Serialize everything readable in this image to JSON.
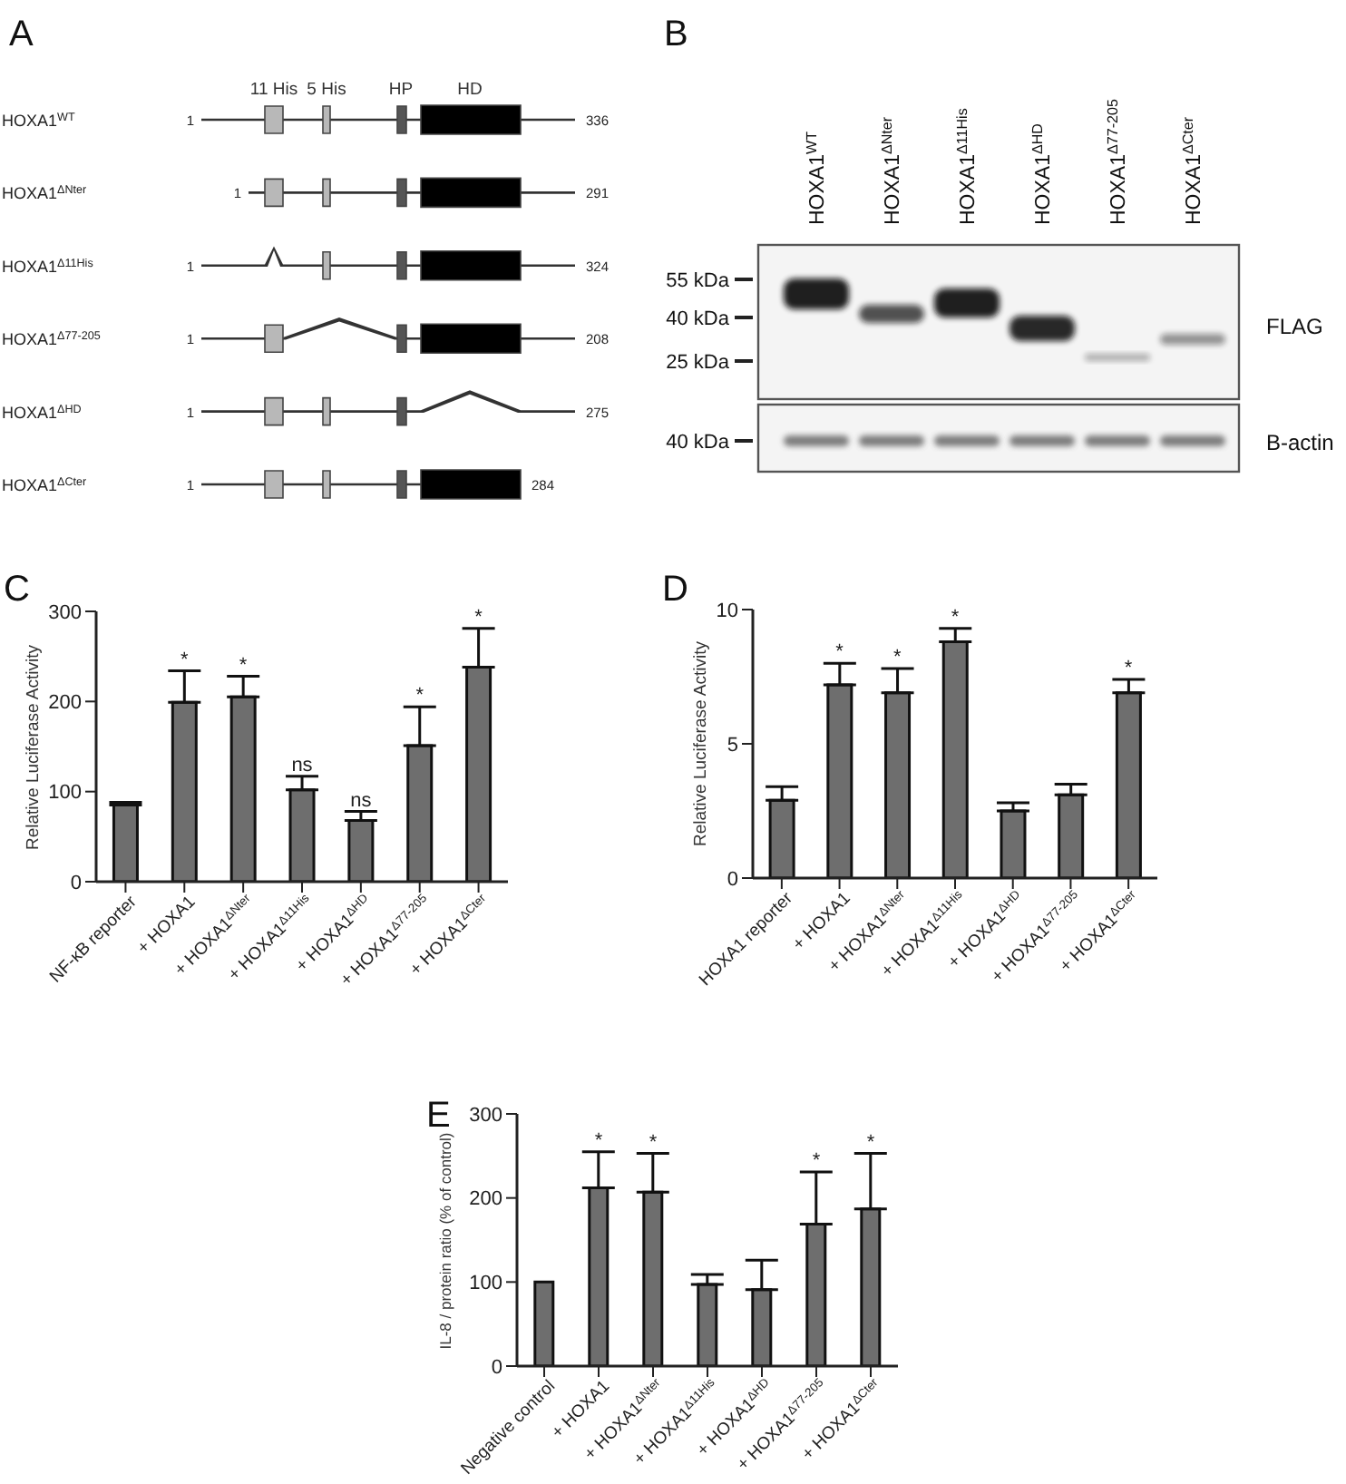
{
  "chart_data": [
    {
      "type": "other",
      "title": "A",
      "categories": [
        "HOXA1$^{WT}$",
        "HOXA1$^{ΔNter}$",
        "HOXA1$^{Δ11His}$",
        "HOXA1$^{Δ77-205}$",
        "HOXA1$^{ΔHD}$",
        "HOXA1$^{ΔCter}$"
      ],
      "values": [
        336,
        291,
        324,
        208,
        275,
        284
      ],
      "data_labels": true,
      "annotations": [
        "11 His",
        "5 His",
        "HP",
        "HD",
        "1",
        "1",
        "1",
        "1",
        "1",
        "1"
      ]
    },
    {
      "type": "other",
      "title": "B",
      "categories": [
        "HOXA1$^{WT}$",
        "HOXA1$^{ΔNter}$",
        "HOXA1$^{Δ11His}$",
        "HOXA1$^{ΔHD}$",
        "HOXA1$^{Δ77-205}$",
        "HOXA1$^{ΔCter}$"
      ],
      "annotations": [
        "55 kDa",
        "40 kDa",
        "25 kDa",
        "40 kDa",
        "FLAG",
        "B-actin"
      ]
    },
    {
      "type": "bar",
      "title": "C",
      "ylabel": "Relative Luciferase Activity",
      "categories": [
        "NF-κB reporter",
        "+ HOXA1",
        "+ HOXA1$^{ΔNter}$",
        "+ HOXA1$^{Δ11His}$",
        "+ HOXA1$^{ΔHD}$",
        "+ HOXA1$^{Δ77-205}$",
        "+ HOXA1$^{ΔCter}$"
      ],
      "values": [
        85,
        199,
        205,
        102,
        68,
        151,
        238
      ],
      "errors": [
        [
          85,
          88
        ],
        [
          199,
          234
        ],
        [
          205,
          228
        ],
        [
          102,
          117
        ],
        [
          68,
          78
        ],
        [
          151,
          194
        ],
        [
          238,
          281
        ]
      ],
      "color": "#6e6e6e",
      "ylim": [
        0,
        300
      ],
      "yticks": [
        0,
        100,
        200,
        300
      ],
      "annotations": [
        {
          "text": "*",
          "x": "+ HOXA1",
          "y": 234
        },
        {
          "text": "*",
          "x": "+ HOXA1$^{ΔNter}$",
          "y": 228
        },
        {
          "text": "ns",
          "x": "+ HOXA1$^{Δ11His}$",
          "y": 117
        },
        {
          "text": "ns",
          "x": "+ HOXA1$^{ΔHD}$",
          "y": 78
        },
        {
          "text": "*",
          "x": "+ HOXA1$^{Δ77-205}$",
          "y": 194
        },
        {
          "text": "*",
          "x": "+ HOXA1$^{ΔCter}$",
          "y": 281
        }
      ]
    },
    {
      "type": "bar",
      "title": "D",
      "ylabel": "Relative Luciferase Activity",
      "categories": [
        "HOXA1 reporter",
        "+ HOXA1",
        "+ HOXA1$^{ΔNter}$",
        "+ HOXA1$^{Δ11His}$",
        "+ HOXA1$^{ΔHD}$",
        "+ HOXA1$^{Δ77-205}$",
        "+ HOXA1$^{ΔCter}$"
      ],
      "values": [
        2.9,
        7.2,
        6.9,
        8.8,
        2.5,
        3.1,
        6.9
      ],
      "errors": [
        [
          2.9,
          3.4
        ],
        [
          7.2,
          8.0
        ],
        [
          6.9,
          7.8
        ],
        [
          8.8,
          9.3
        ],
        [
          2.5,
          2.8
        ],
        [
          3.1,
          3.5
        ],
        [
          6.9,
          7.4
        ]
      ],
      "color": "#6e6e6e",
      "ylim": [
        0,
        10
      ],
      "yticks": [
        0,
        5,
        10
      ],
      "annotations": [
        {
          "text": "*",
          "x": "+ HOXA1",
          "y": 8.0
        },
        {
          "text": "*",
          "x": "+ HOXA1$^{ΔNter}$",
          "y": 7.8
        },
        {
          "text": "*",
          "x": "+ HOXA1$^{Δ11His}$",
          "y": 9.3
        },
        {
          "text": "*",
          "x": "+ HOXA1$^{ΔCter}$",
          "y": 7.4
        }
      ]
    },
    {
      "type": "bar",
      "title": "E",
      "ylabel": "IL-8 / protein ratio (% of control)",
      "categories": [
        "Negative control",
        "+ HOXA1",
        "+ HOXA1$^{ΔNter}$",
        "+ HOXA1$^{Δ11His}$",
        "+ HOXA1$^{ΔHD}$",
        "+ HOXA1$^{Δ77-205}$",
        "+ HOXA1$^{ΔCter}$"
      ],
      "values": [
        100,
        212,
        207,
        97,
        91,
        169,
        187
      ],
      "errors": [
        null,
        [
          212,
          255
        ],
        [
          207,
          253
        ],
        [
          97,
          109
        ],
        [
          91,
          126
        ],
        [
          169,
          231
        ],
        [
          187,
          253
        ]
      ],
      "color": "#6e6e6e",
      "ylim": [
        0,
        300
      ],
      "yticks": [
        0,
        100,
        200,
        300
      ],
      "annotations": [
        {
          "text": "*",
          "x": "+ HOXA1",
          "y": 255
        },
        {
          "text": "*",
          "x": "+ HOXA1$^{ΔNter}$",
          "y": 253
        },
        {
          "text": "*",
          "x": "+ HOXA1$^{Δ77-205}$",
          "y": 231
        },
        {
          "text": "*",
          "x": "+ HOXA1$^{ΔCter}$",
          "y": 253
        }
      ]
    }
  ]
}
